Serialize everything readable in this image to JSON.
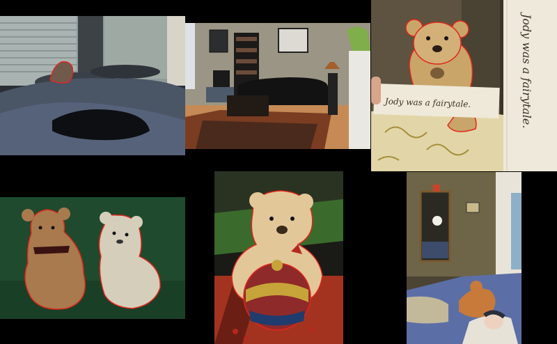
{
  "collage": {
    "background": "#000000",
    "outline_color": "#e2261b",
    "tiles": [
      {
        "name": "bedroom-window-bear"
      },
      {
        "name": "living-room"
      },
      {
        "name": "bear-holding-note",
        "note_text": "Jody was a fairytale.",
        "paper_strip_text": "Jody was a fairytale."
      },
      {
        "name": "two-teddy-bears-green"
      },
      {
        "name": "christmas-bear-ornament"
      },
      {
        "name": "bedroom-cat-baby"
      }
    ]
  }
}
